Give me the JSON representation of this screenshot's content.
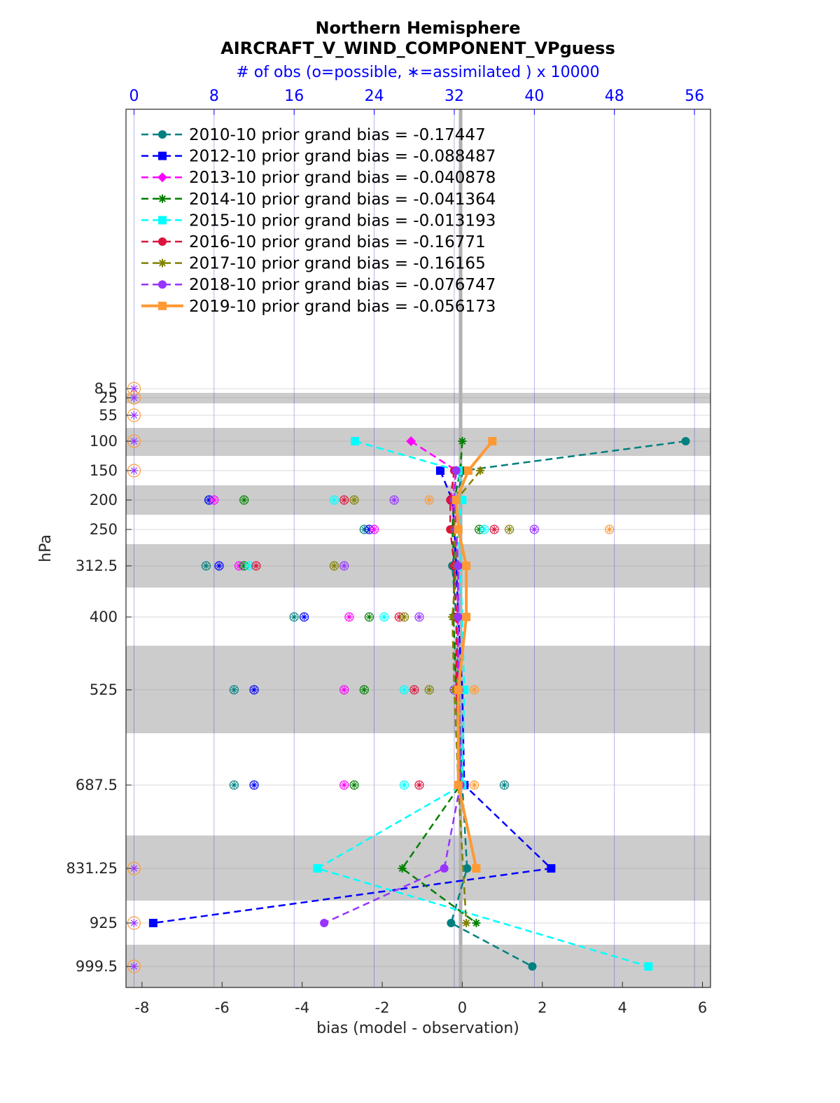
{
  "chart_data": {
    "type": "line",
    "title": "Northern Hemisphere",
    "subtitle": "AIRCRAFT_V_WIND_COMPONENT_VPguess",
    "top_axis_label": "# of obs (o=possible, ∗=assimilated ) x 10000",
    "xlabel": "bias (model - observation)",
    "ylabel": "hPa",
    "xlim": [
      -8.4,
      6.2
    ],
    "top_xlim": [
      -0.8,
      57.6
    ],
    "x_ticks": [
      "-8",
      "-6",
      "-4",
      "-2",
      "0",
      "2",
      "4",
      "6"
    ],
    "top_x_ticks": [
      "0",
      "8",
      "16",
      "24",
      "32",
      "40",
      "48",
      "56"
    ],
    "y_levels": [
      "8.5",
      "25",
      "55",
      "100",
      "150",
      "200",
      "250",
      "312.5",
      "400",
      "525",
      "687.5",
      "831.25",
      "925",
      "999.5"
    ],
    "grid": true,
    "legend_placement": "top-left",
    "series": [
      {
        "name": "2010-10 prior grand bias = -0.17447",
        "color": "#008080",
        "marker": "circle",
        "style": "dashed",
        "points": [
          [
            5.58,
            100
          ],
          [
            0.02,
            150
          ],
          [
            -0.15,
            200
          ],
          [
            -0.1,
            250
          ],
          [
            -0.25,
            312.5
          ],
          [
            -0.15,
            400
          ],
          [
            -0.1,
            525
          ],
          [
            0.0,
            687.5
          ],
          [
            0.12,
            831.25
          ],
          [
            -0.28,
            925
          ],
          [
            1.75,
            999.5
          ]
        ]
      },
      {
        "name": "2012-10 prior grand bias = -0.088487",
        "color": "#0000ff",
        "marker": "square",
        "style": "dashed",
        "points": [
          [
            -0.55,
            150
          ],
          [
            -0.25,
            200
          ],
          [
            -0.2,
            250
          ],
          [
            -0.15,
            312.5
          ],
          [
            -0.1,
            400
          ],
          [
            0.0,
            525
          ],
          [
            0.05,
            687.5
          ],
          [
            2.22,
            831.25
          ],
          [
            -7.72,
            925
          ]
        ]
      },
      {
        "name": "2013-10 prior grand bias = -0.040878",
        "color": "#ff00ff",
        "marker": "diamond",
        "style": "dashed",
        "points": [
          [
            -1.28,
            100
          ],
          [
            -0.15,
            150
          ],
          [
            -0.25,
            200
          ],
          [
            -0.2,
            250
          ],
          [
            -0.1,
            312.5
          ],
          [
            -0.12,
            400
          ],
          [
            -0.1,
            525
          ],
          [
            -0.05,
            687.5
          ]
        ]
      },
      {
        "name": "2014-10 prior grand bias = -0.041364",
        "color": "#008000",
        "marker": "star",
        "style": "dashed",
        "points": [
          [
            0.0,
            100
          ],
          [
            -0.05,
            150
          ],
          [
            -0.2,
            200
          ],
          [
            -0.25,
            250
          ],
          [
            -0.2,
            312.5
          ],
          [
            -0.22,
            400
          ],
          [
            -0.15,
            525
          ],
          [
            -0.05,
            687.5
          ],
          [
            -1.5,
            831.25
          ],
          [
            0.35,
            925
          ]
        ]
      },
      {
        "name": "2015-10 prior grand bias = -0.013193",
        "color": "#00ffff",
        "marker": "square",
        "style": "dashed",
        "points": [
          [
            -2.68,
            100
          ],
          [
            -0.1,
            150
          ],
          [
            0.0,
            200
          ],
          [
            -0.1,
            250
          ],
          [
            -0.05,
            312.5
          ],
          [
            0.0,
            400
          ],
          [
            0.05,
            525
          ],
          [
            0.0,
            687.5
          ],
          [
            -3.62,
            831.25
          ],
          [
            4.65,
            999.5
          ]
        ]
      },
      {
        "name": "2016-10 prior grand bias = -0.16771",
        "color": "#dc143c",
        "marker": "circle",
        "style": "dashed",
        "points": [
          [
            -0.2,
            150
          ],
          [
            -0.3,
            200
          ],
          [
            -0.3,
            250
          ],
          [
            -0.2,
            312.5
          ],
          [
            -0.15,
            400
          ],
          [
            -0.15,
            525
          ],
          [
            -0.05,
            687.5
          ]
        ]
      },
      {
        "name": "2017-10 prior grand bias = -0.16165",
        "color": "#808000",
        "marker": "star",
        "style": "dashed",
        "points": [
          [
            0.45,
            150
          ],
          [
            -0.15,
            200
          ],
          [
            -0.2,
            250
          ],
          [
            -0.15,
            312.5
          ],
          [
            -0.25,
            400
          ],
          [
            -0.2,
            525
          ],
          [
            -0.1,
            687.5
          ],
          [
            0.1,
            925
          ]
        ]
      },
      {
        "name": "2018-10 prior grand bias = -0.076747",
        "color": "#9933ff",
        "marker": "circle",
        "style": "dashed",
        "points": [
          [
            -0.15,
            150
          ],
          [
            -0.2,
            200
          ],
          [
            -0.15,
            250
          ],
          [
            -0.1,
            312.5
          ],
          [
            -0.1,
            400
          ],
          [
            -0.08,
            525
          ],
          [
            -0.05,
            687.5
          ],
          [
            -0.45,
            831.25
          ],
          [
            -3.45,
            925
          ]
        ]
      },
      {
        "name": "2019-10 prior grand bias = -0.056173",
        "color": "#ff9933",
        "marker": "square",
        "style": "solid",
        "points": [
          [
            0.75,
            100
          ],
          [
            0.15,
            150
          ],
          [
            -0.15,
            200
          ],
          [
            -0.1,
            250
          ],
          [
            0.1,
            312.5
          ],
          [
            0.1,
            400
          ],
          [
            -0.1,
            525
          ],
          [
            -0.1,
            687.5
          ],
          [
            0.35,
            831.25
          ]
        ]
      }
    ],
    "obs_counts": {
      "note_units": "x 10000",
      "rows": [
        {
          "level": "8.5",
          "values": [
            0
          ]
        },
        {
          "level": "25",
          "values": [
            0
          ]
        },
        {
          "level": "55",
          "values": [
            0
          ]
        },
        {
          "level": "100",
          "values": [
            0
          ]
        },
        {
          "level": "150",
          "values": [
            0
          ]
        },
        {
          "level": "200",
          "values": [
            7.5,
            7.5,
            8,
            11,
            20,
            21,
            22,
            26,
            29.5
          ]
        },
        {
          "level": "250",
          "values": [
            23,
            23.5,
            24,
            34.5,
            35,
            36,
            37.5,
            40,
            47.5
          ]
        },
        {
          "level": "312.5",
          "values": [
            7.2,
            8.5,
            10.5,
            11,
            11.5,
            12.2,
            20,
            21
          ]
        },
        {
          "level": "400",
          "values": [
            16,
            17,
            21.5,
            23.5,
            25,
            26.5,
            27,
            28.5
          ]
        },
        {
          "level": "525",
          "values": [
            10,
            12,
            21,
            23,
            27,
            28,
            29.5,
            32,
            34
          ]
        },
        {
          "level": "687.5",
          "values": [
            10,
            12,
            21,
            22,
            27,
            28.5,
            32.5,
            33,
            34,
            37
          ]
        },
        {
          "level": "831.25",
          "values": [
            0
          ]
        },
        {
          "level": "925",
          "values": [
            0
          ]
        },
        {
          "level": "999.5",
          "values": [
            0
          ]
        }
      ]
    }
  }
}
